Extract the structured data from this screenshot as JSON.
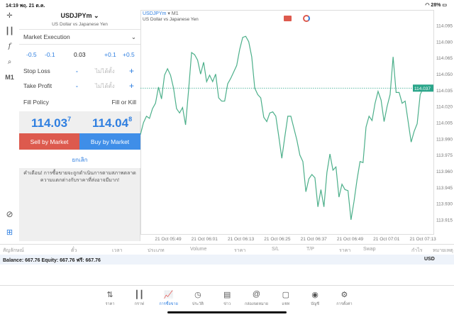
{
  "status": {
    "time": "14:19",
    "date": "พฤ. 21 ต.ค.",
    "battery": "28%"
  },
  "toolbar": {
    "icons": [
      "crosshair-icon",
      "candlestick-icon",
      "function-icon",
      "objects-icon"
    ],
    "timeframe": "M1"
  },
  "order": {
    "symbol": "USDJPYm",
    "symbol_desc": "US Dollar vs Japanese Yen",
    "execution": "Market Execution",
    "steps": [
      "-0.5",
      "-0.1",
      "+0.1",
      "+0.5"
    ],
    "volume": "0.03",
    "stop_loss_label": "Stop Loss",
    "take_profit_label": "Take Profit",
    "not_set": "ไม่ได้ตั้ง",
    "minus": "-",
    "plus": "+",
    "fill_policy_label": "Fill Policy",
    "fill_policy": "Fill or Kill",
    "bid_main": "114.03",
    "bid_sup": "7",
    "ask_main": "114.04",
    "ask_sup": "8",
    "sell_label": "Sell by Market",
    "buy_label": "Buy by Market",
    "cancel_label": "ยกเลิก",
    "warning": "คำเตือน! การซื้อขายจะถูกดำเนินการตามสภาพตลาด ความแตกต่างกับราคาที่ส่งอาจมีมาก!"
  },
  "chart_header": {
    "symbol": "USDJPYm",
    "timeframe": "▾ M1",
    "desc": "US Dollar vs Japanese Yen"
  },
  "colors": {
    "line": "#4caf8a",
    "accent": "#2f7fe0",
    "sell": "#dd5a4e",
    "buy": "#3f8ee8",
    "price_tag": "#2aa58a"
  },
  "chart_data": {
    "type": "line",
    "ylim": [
      113.905,
      114.105
    ],
    "yticks": [
      "114.095",
      "114.080",
      "114.065",
      "114.050",
      "114.035",
      "114.020",
      "114.005",
      "113.990",
      "113.975",
      "113.960",
      "113.945",
      "113.930",
      "113.915"
    ],
    "xticks": [
      "21 Oct 05:49",
      "21 Oct 06:01",
      "21 Oct 06:13",
      "21 Oct 06:25",
      "21 Oct 06:37",
      "21 Oct 06:49",
      "21 Oct 07:01",
      "21 Oct 07:13"
    ],
    "current_price": "114.037",
    "grid": false,
    "x_start": "05:40",
    "x_step_minutes": 1,
    "values": [
      113.994,
      114.005,
      114.011,
      114.009,
      114.018,
      114.023,
      114.038,
      114.027,
      114.049,
      114.055,
      114.049,
      114.037,
      114.018,
      114.014,
      114.019,
      114.003,
      114.035,
      114.07,
      114.068,
      114.063,
      114.05,
      114.061,
      114.043,
      114.049,
      114.043,
      114.05,
      114.028,
      114.025,
      114.025,
      114.041,
      114.046,
      114.052,
      114.058,
      114.073,
      114.084,
      114.085,
      114.08,
      114.066,
      114.037,
      114.031,
      114.028,
      114.01,
      114.006,
      114.014,
      114.015,
      114.011,
      113.992,
      113.972,
      113.992,
      114.011,
      114.011,
      114.0,
      113.989,
      113.975,
      113.969,
      113.941,
      113.953,
      113.957,
      113.954,
      113.927,
      113.943,
      113.927,
      113.959,
      113.976,
      113.961,
      113.964,
      113.936,
      113.948,
      113.943,
      113.942,
      113.915,
      113.932,
      113.952,
      113.969,
      113.968,
      114.001,
      114.011,
      114.007,
      114.023,
      114.034,
      114.026,
      114.006,
      114.02,
      114.031,
      114.066,
      114.033,
      114.033,
      114.023,
      114.025,
      114.006,
      113.987,
      113.997,
      114.004,
      114.031,
      114.037
    ]
  },
  "table": {
    "headers": [
      "สัญลักษณ์",
      "ตั๋ว",
      "เวลา",
      "ประเภท",
      "Volume",
      "ราคา",
      "S/L",
      "T/P",
      "ราคา",
      "Swap",
      "กำไร",
      "หมายเหตุ"
    ]
  },
  "balance": {
    "text": "Balance: 667.76 Equity: 667.76 ฟรี: 667.76",
    "currency": "USD"
  },
  "nav": [
    {
      "label": "ราคา",
      "icon": "quotes-icon"
    },
    {
      "label": "กราฟ",
      "icon": "chart-icon"
    },
    {
      "label": "การซื้อขาย",
      "icon": "trade-icon"
    },
    {
      "label": "ประวัติ",
      "icon": "history-icon"
    },
    {
      "label": "ข่าว",
      "icon": "news-icon"
    },
    {
      "label": "กล่องจดหมาย",
      "icon": "mailbox-icon"
    },
    {
      "label": "แชท",
      "icon": "chat-icon"
    },
    {
      "label": "บัญชี",
      "icon": "account-icon"
    },
    {
      "label": "การตั้งค่า",
      "icon": "settings-icon"
    }
  ]
}
